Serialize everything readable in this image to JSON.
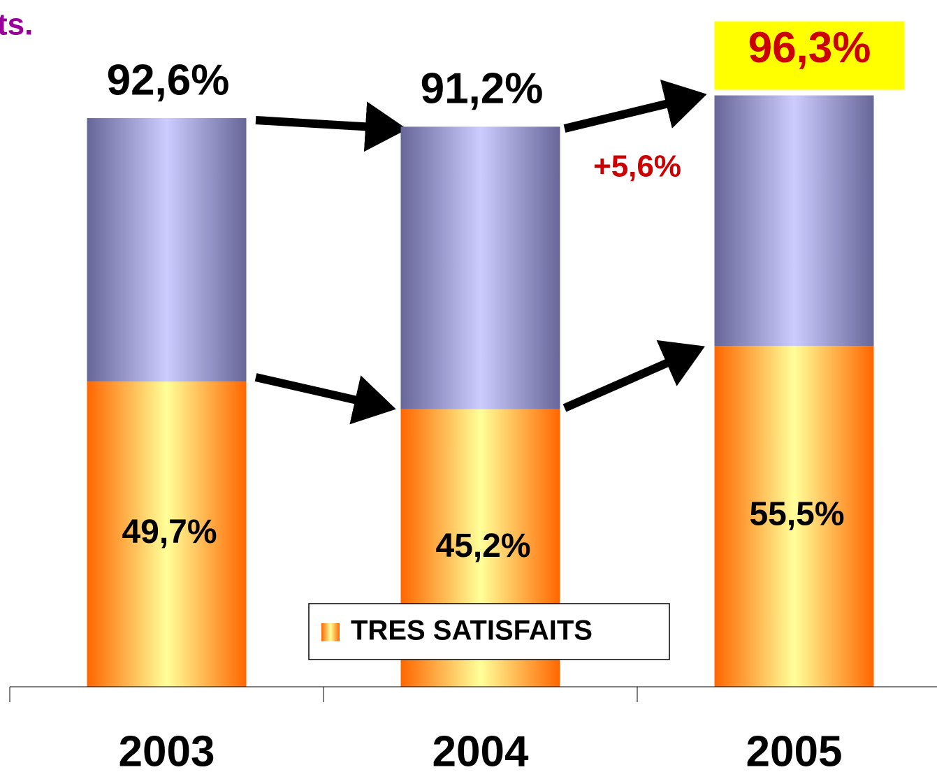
{
  "chart_data": {
    "type": "stacked_bar",
    "title": "ts.",
    "categories": [
      "2003",
      "2004",
      "2005"
    ],
    "series": [
      {
        "name": "TRES SATISFAITS",
        "color": "#ff6600",
        "values": [
          49.7,
          45.2,
          55.5
        ],
        "value_labels": [
          "49,7%",
          "45,2%",
          "55,5%"
        ]
      },
      {
        "color": "#666699",
        "values": [
          42.9,
          46.0,
          40.8
        ]
      }
    ],
    "totals": {
      "values": [
        92.6,
        91.2,
        96.3
      ],
      "value_labels": [
        "92,6%",
        "91,2%",
        "96,3%"
      ],
      "colors": [
        "#000000",
        "#000000",
        "#cc0000"
      ],
      "backgrounds": [
        null,
        null,
        "#ffff00"
      ]
    },
    "annotation": "+5,6%",
    "ylim": [
      0,
      100
    ],
    "legend": "bottom"
  }
}
